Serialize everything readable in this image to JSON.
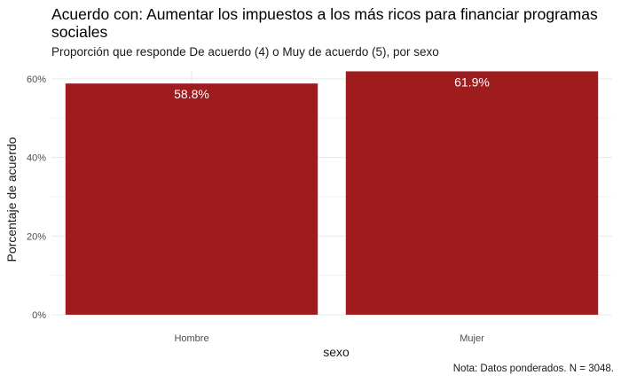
{
  "chart_data": {
    "type": "bar",
    "title": "Acuerdo con: Aumentar los impuestos a los más ricos para financiar programas sociales",
    "subtitle": "Proporción que responde De acuerdo (4) o Muy de acuerdo (5), por sexo",
    "xlabel": "sexo",
    "ylabel": "Porcentaje de acuerdo",
    "caption": "Nota: Datos ponderados. N = 3048.",
    "categories": [
      "Hombre",
      "Mujer"
    ],
    "values": [
      58.8,
      61.9
    ],
    "value_labels": [
      "58.8%",
      "61.9%"
    ],
    "ylim": [
      0,
      62
    ],
    "yticks": [
      0,
      20,
      40,
      60
    ],
    "ytick_labels": [
      "0%",
      "20%",
      "40%",
      "60%"
    ],
    "grid": true,
    "bar_color": "#9E1B1E",
    "grid_color": "#EBEBEB"
  }
}
